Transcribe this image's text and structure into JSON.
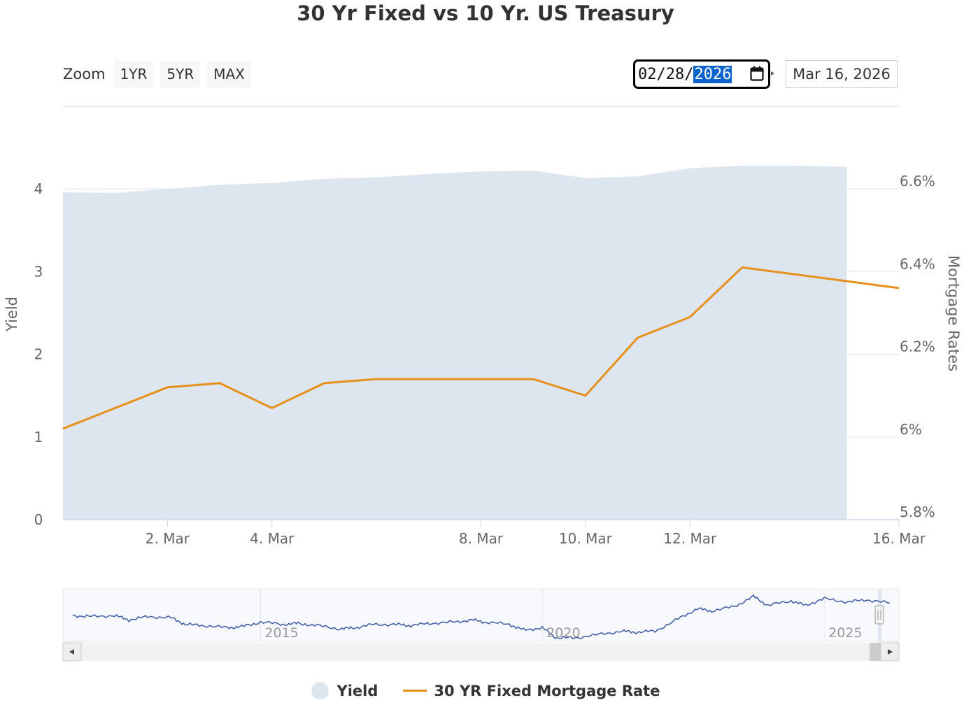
{
  "title": "30 Yr Fixed vs 10 Yr. US Treasury",
  "zoom": {
    "label": "Zoom",
    "buttons": [
      "1YR",
      "5YR",
      "MAX"
    ]
  },
  "range": {
    "from_month_day": "02/28/",
    "from_year": "2026",
    "to": "Mar 16, 2026"
  },
  "colors": {
    "yield_fill": "#dde6ee",
    "mortgage_line": "#e8901c",
    "navigator_line": "#3b5ba8"
  },
  "chart_data": {
    "type": "line",
    "title": "30 Yr Fixed vs 10 Yr. US Treasury",
    "x_range": [
      "2026-02-28",
      "2026-03-16"
    ],
    "x_ticks": [
      "2. Mar",
      "4. Mar",
      "8. Mar",
      "10. Mar",
      "12. Mar",
      "16. Mar"
    ],
    "x_tick_dates": [
      "2026-03-02",
      "2026-03-04",
      "2026-03-08",
      "2026-03-10",
      "2026-03-12",
      "2026-03-16"
    ],
    "y_left": {
      "label": "Yield",
      "ticks": [
        "0",
        "1",
        "2",
        "3",
        "4"
      ],
      "range": [
        0,
        4
      ]
    },
    "y_right": {
      "label": "Mortgage Rates",
      "ticks": [
        "5.8%",
        "6%",
        "6.2%",
        "6.4%",
        "6.6%"
      ],
      "range": [
        5.8,
        6.6
      ]
    },
    "grid": true,
    "legend_placement": "bottom-center",
    "series": [
      {
        "name": "Yield",
        "type": "area",
        "axis": "left",
        "x": [
          "2026-02-28",
          "2026-03-01",
          "2026-03-02",
          "2026-03-03",
          "2026-03-04",
          "2026-03-05",
          "2026-03-06",
          "2026-03-07",
          "2026-03-08",
          "2026-03-09",
          "2026-03-10",
          "2026-03-11",
          "2026-03-12",
          "2026-03-13",
          "2026-03-14",
          "2026-03-15"
        ],
        "values": [
          3.96,
          3.95,
          4.0,
          4.05,
          4.07,
          4.12,
          4.14,
          4.18,
          4.21,
          4.22,
          4.13,
          4.15,
          4.25,
          4.28,
          4.28,
          4.27
        ]
      },
      {
        "name": "30 YR Fixed Mortgage Rate",
        "type": "line",
        "axis": "right",
        "x": [
          "2026-02-28",
          "2026-03-02",
          "2026-03-03",
          "2026-03-04",
          "2026-03-05",
          "2026-03-06",
          "2026-03-07",
          "2026-03-08",
          "2026-03-09",
          "2026-03-10",
          "2026-03-11",
          "2026-03-12",
          "2026-03-13",
          "2026-03-16"
        ],
        "values": [
          6.02,
          6.12,
          6.13,
          6.07,
          6.13,
          6.14,
          6.14,
          6.14,
          6.14,
          6.1,
          6.24,
          6.29,
          6.41,
          6.36
        ]
      }
    ],
    "navigator": {
      "x_ticks": [
        "2015",
        "2020",
        "2025"
      ],
      "x_range": [
        "2011-07-01",
        "2026-04-30"
      ],
      "series": {
        "name": "Yield",
        "x": [
          "2011-09",
          "2012-01",
          "2012-06",
          "2012-09",
          "2013-01",
          "2013-06",
          "2013-09",
          "2014-01",
          "2014-06",
          "2014-09",
          "2015-01",
          "2015-06",
          "2015-09",
          "2016-01",
          "2016-06",
          "2016-09",
          "2017-01",
          "2017-06",
          "2017-09",
          "2018-01",
          "2018-06",
          "2018-10",
          "2019-01",
          "2019-06",
          "2019-09",
          "2020-01",
          "2020-04",
          "2020-08",
          "2021-01",
          "2021-06",
          "2021-09",
          "2022-01",
          "2022-06",
          "2022-10",
          "2023-01",
          "2023-06",
          "2023-10",
          "2024-01",
          "2024-06",
          "2024-09",
          "2025-01",
          "2025-06",
          "2025-10",
          "2026-03"
        ],
        "values": [
          2.0,
          1.9,
          2.0,
          1.6,
          1.9,
          1.8,
          1.2,
          1.1,
          0.9,
          1.0,
          1.4,
          1.2,
          1.3,
          1.1,
          0.8,
          0.9,
          1.2,
          1.2,
          1.1,
          1.3,
          1.4,
          1.6,
          1.4,
          1.2,
          0.7,
          0.9,
          0.0,
          0.0,
          0.3,
          0.6,
          0.5,
          0.6,
          1.7,
          2.6,
          2.4,
          2.8,
          3.7,
          2.9,
          3.3,
          2.9,
          3.5,
          3.2,
          3.4,
          3.1
        ]
      }
    }
  },
  "legend": [
    {
      "label": "Yield"
    },
    {
      "label": "30 YR Fixed Mortgage Rate"
    }
  ]
}
